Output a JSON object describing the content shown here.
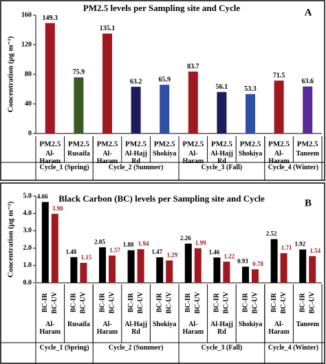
{
  "chart_data": [
    {
      "type": "bar",
      "panel": "A",
      "title": "PM2.5 levels per Sampling site and Cycle",
      "y_label": "Concentration (µg m⁻³)",
      "bar_label": "PM2.5",
      "ylim": [
        0,
        160
      ],
      "yticks": [
        0,
        40,
        80,
        120,
        160
      ],
      "groups": [
        {
          "label": "Cycle_1 (Spring)",
          "categories": [
            "Al-Haram",
            "Rusaifa"
          ],
          "values": [
            149.3,
            75.9
          ],
          "colors": [
            "#a0191f",
            "#3b5b22"
          ]
        },
        {
          "label": "Cycle_2 (Summer)",
          "categories": [
            "Al-Haram",
            "Al-Hajj Rd",
            "Shokiya"
          ],
          "values": [
            135.1,
            63.2,
            65.9
          ],
          "colors": [
            "#a0191f",
            "#1b1d5e",
            "#2f4ea6"
          ]
        },
        {
          "label": "Cycle_3 (Fall)",
          "categories": [
            "Al-Haram",
            "Al-Hajj Rd",
            "Shokiya"
          ],
          "values": [
            83.7,
            56.1,
            53.3
          ],
          "colors": [
            "#a0191f",
            "#1b1d5e",
            "#2f4ea6"
          ]
        },
        {
          "label": "Cycle_4 (Winter)",
          "categories": [
            "Al-Haram",
            "Taneem"
          ],
          "values": [
            71.5,
            63.6
          ],
          "colors": [
            "#a0191f",
            "#5a2a9a"
          ]
        }
      ]
    },
    {
      "type": "bar",
      "panel": "B",
      "title": "Black Carbon (BC) levels per Sampling site and Cycle",
      "y_label": "Concentration (µg m⁻³)",
      "ylim": [
        0,
        5
      ],
      "yticks": [
        {
          "value": 0,
          "label": "0.0"
        },
        {
          "value": 1,
          "label": "1.0"
        },
        {
          "value": 2,
          "label": "2.0"
        },
        {
          "value": 3,
          "label": "3.0"
        },
        {
          "value": 4,
          "label": "4.0"
        },
        {
          "value": 5,
          "label": "5.0"
        }
      ],
      "series": [
        {
          "name": "BC-IR",
          "color": "#000000"
        },
        {
          "name": "BC-UV",
          "color": "#a0191f"
        }
      ],
      "groups": [
        {
          "label": "Cycle_1 (Spring)",
          "categories": [
            "Al-Haram",
            "Rusaifa"
          ],
          "values": [
            [
              4.66,
              3.98
            ],
            [
              1.48,
              1.15
            ]
          ]
        },
        {
          "label": "Cycle_2 (Summer)",
          "categories": [
            "Al-Haram",
            "Al-Hajj Rd",
            "Shokiya"
          ],
          "values": [
            [
              2.05,
              1.57
            ],
            [
              1.88,
              1.94
            ],
            [
              1.47,
              1.29
            ]
          ]
        },
        {
          "label": "Cycle_3 (Fall)",
          "categories": [
            "Al-Haram",
            "Al-Hajj Rd",
            "Shokiya"
          ],
          "values": [
            [
              2.26,
              1.99
            ],
            [
              1.46,
              1.22
            ],
            [
              0.93,
              0.78
            ]
          ]
        },
        {
          "label": "Cycle_4 (Winter)",
          "categories": [
            "Al-Haram",
            "Taneem"
          ],
          "values": [
            [
              2.52,
              1.71
            ],
            [
              1.92,
              1.54
            ]
          ]
        }
      ]
    }
  ]
}
